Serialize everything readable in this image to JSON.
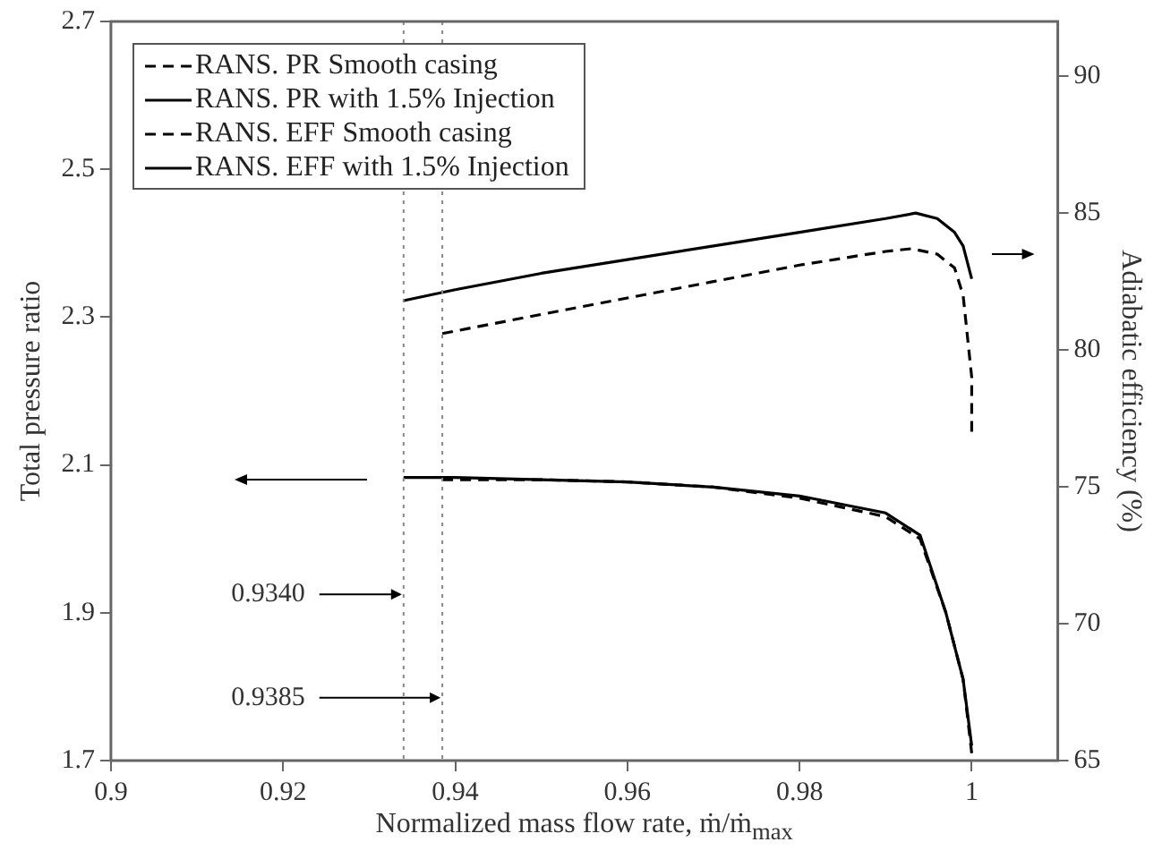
{
  "chart_data": {
    "type": "line",
    "xlabel": "Normalized mass flow rate, ṁ/ṁ$_{max}$",
    "ylabel": "Total pressure ratio",
    "y2label": "Adiabatic efficiency (%)",
    "xlim": [
      0.9,
      1.01
    ],
    "xticks": [
      0.9,
      0.92,
      0.94,
      0.96,
      0.98,
      1
    ],
    "ylim": [
      1.7,
      2.7
    ],
    "yticks": [
      1.7,
      1.9,
      2.1,
      2.3,
      2.5,
      2.7
    ],
    "y2lim": [
      65,
      92
    ],
    "y2ticks": [
      65,
      70,
      75,
      80,
      85,
      90
    ],
    "legend": "top left",
    "grid": false,
    "series": [
      {
        "name": "RANS. PR Smooth casing",
        "color": "#000000",
        "line_style": "dashed",
        "x": [
          0.9385,
          0.95,
          0.96,
          0.97,
          0.98,
          0.99,
          0.994,
          0.997,
          0.999,
          1.0
        ],
        "values": [
          2.08,
          2.08,
          2.077,
          2.07,
          2.055,
          2.03,
          2.0,
          1.9,
          1.81,
          1.71
        ]
      },
      {
        "name": "RANS. PR with 1.5% Injection",
        "color": "#000000",
        "line_style": "solid",
        "x": [
          0.934,
          0.94,
          0.95,
          0.96,
          0.97,
          0.98,
          0.99,
          0.994,
          0.997,
          0.999,
          1.0
        ],
        "values": [
          2.083,
          2.083,
          2.08,
          2.077,
          2.07,
          2.058,
          2.035,
          2.005,
          1.9,
          1.81,
          1.72
        ]
      },
      {
        "name": "RANS. EFF Smooth casing",
        "color": "#000000",
        "line_style": "dashed",
        "axis": "y2",
        "x": [
          0.9385,
          0.95,
          0.96,
          0.97,
          0.98,
          0.99,
          0.993,
          0.996,
          0.998,
          0.999,
          1.0,
          1.0
        ],
        "values": [
          80.6,
          81.3,
          81.9,
          82.5,
          83.1,
          83.6,
          83.7,
          83.5,
          83.0,
          82.0,
          79.0,
          77.0
        ]
      },
      {
        "name": "RANS. EFF with 1.5% Injection",
        "color": "#000000",
        "line_style": "solid",
        "axis": "y2",
        "x": [
          0.934,
          0.94,
          0.95,
          0.96,
          0.97,
          0.98,
          0.99,
          0.9935,
          0.996,
          0.998,
          0.999,
          1.0
        ],
        "values": [
          81.8,
          82.2,
          82.8,
          83.3,
          83.8,
          84.3,
          84.8,
          85.0,
          84.8,
          84.3,
          83.8,
          82.6
        ]
      }
    ],
    "ref_lines": [
      {
        "axis": "x",
        "value": 0.934,
        "label": "0.9340",
        "color": "#888888",
        "line_style": "dotted"
      },
      {
        "axis": "x",
        "value": 0.9385,
        "label": "0.9385",
        "color": "#888888",
        "line_style": "dotted"
      }
    ]
  }
}
